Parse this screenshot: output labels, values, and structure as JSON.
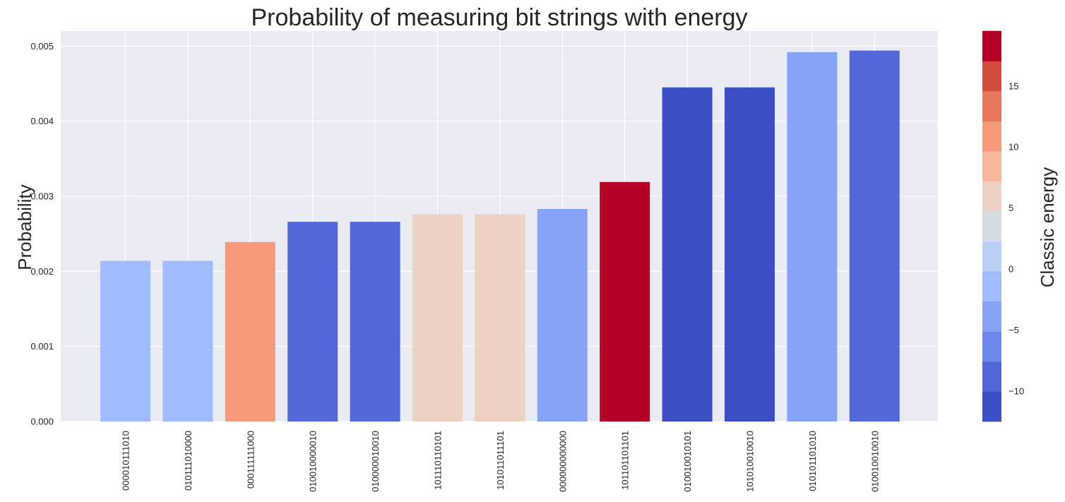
{
  "chart_data": {
    "type": "bar",
    "title": "Probability of measuring bit strings with energy",
    "xlabel": "",
    "ylabel": "Probability",
    "ylim": [
      0,
      0.0052
    ],
    "yticks": [
      0.0,
      0.001,
      0.002,
      0.003,
      0.004,
      0.005
    ],
    "ytick_labels": [
      "0.000",
      "0.001",
      "0.002",
      "0.003",
      "0.004",
      "0.005"
    ],
    "categories": [
      "000010111010",
      "010111010000",
      "000111111000",
      "010010000010",
      "010000010010",
      "101110110101",
      "101011011101",
      "000000000000",
      "101101101101",
      "010010010101",
      "101010010010",
      "010101101010",
      "010010010010"
    ],
    "values": [
      0.00214,
      0.00214,
      0.00239,
      0.00266,
      0.00266,
      0.00276,
      0.00276,
      0.00283,
      0.00319,
      0.00445,
      0.00445,
      0.00492,
      0.00494
    ],
    "energies": [
      -1,
      -1,
      12,
      -9,
      -9,
      5,
      5,
      -4,
      19,
      -11,
      -11,
      -3,
      -9
    ],
    "grid": true,
    "colorbar": {
      "label": "Classic energy",
      "range": [
        -12.5,
        19.5
      ],
      "ticks": [
        -10,
        -5,
        0,
        5,
        10,
        15
      ],
      "tick_labels": [
        "−10",
        "−5",
        "0",
        "5",
        "10",
        "15"
      ],
      "colors": [
        "#3d4fc4",
        "#5268d9",
        "#6b88ee",
        "#86a3f8",
        "#a0bcfe",
        "#bcd0f7",
        "#d5dbe3",
        "#ecd1c4",
        "#f7b99c",
        "#f49a7a",
        "#e8765c",
        "#d44c3f",
        "#b50027"
      ]
    },
    "colors": {
      "plot_bg": "#eaeaf2",
      "grid": "#ffffff",
      "text": "#262626"
    }
  }
}
